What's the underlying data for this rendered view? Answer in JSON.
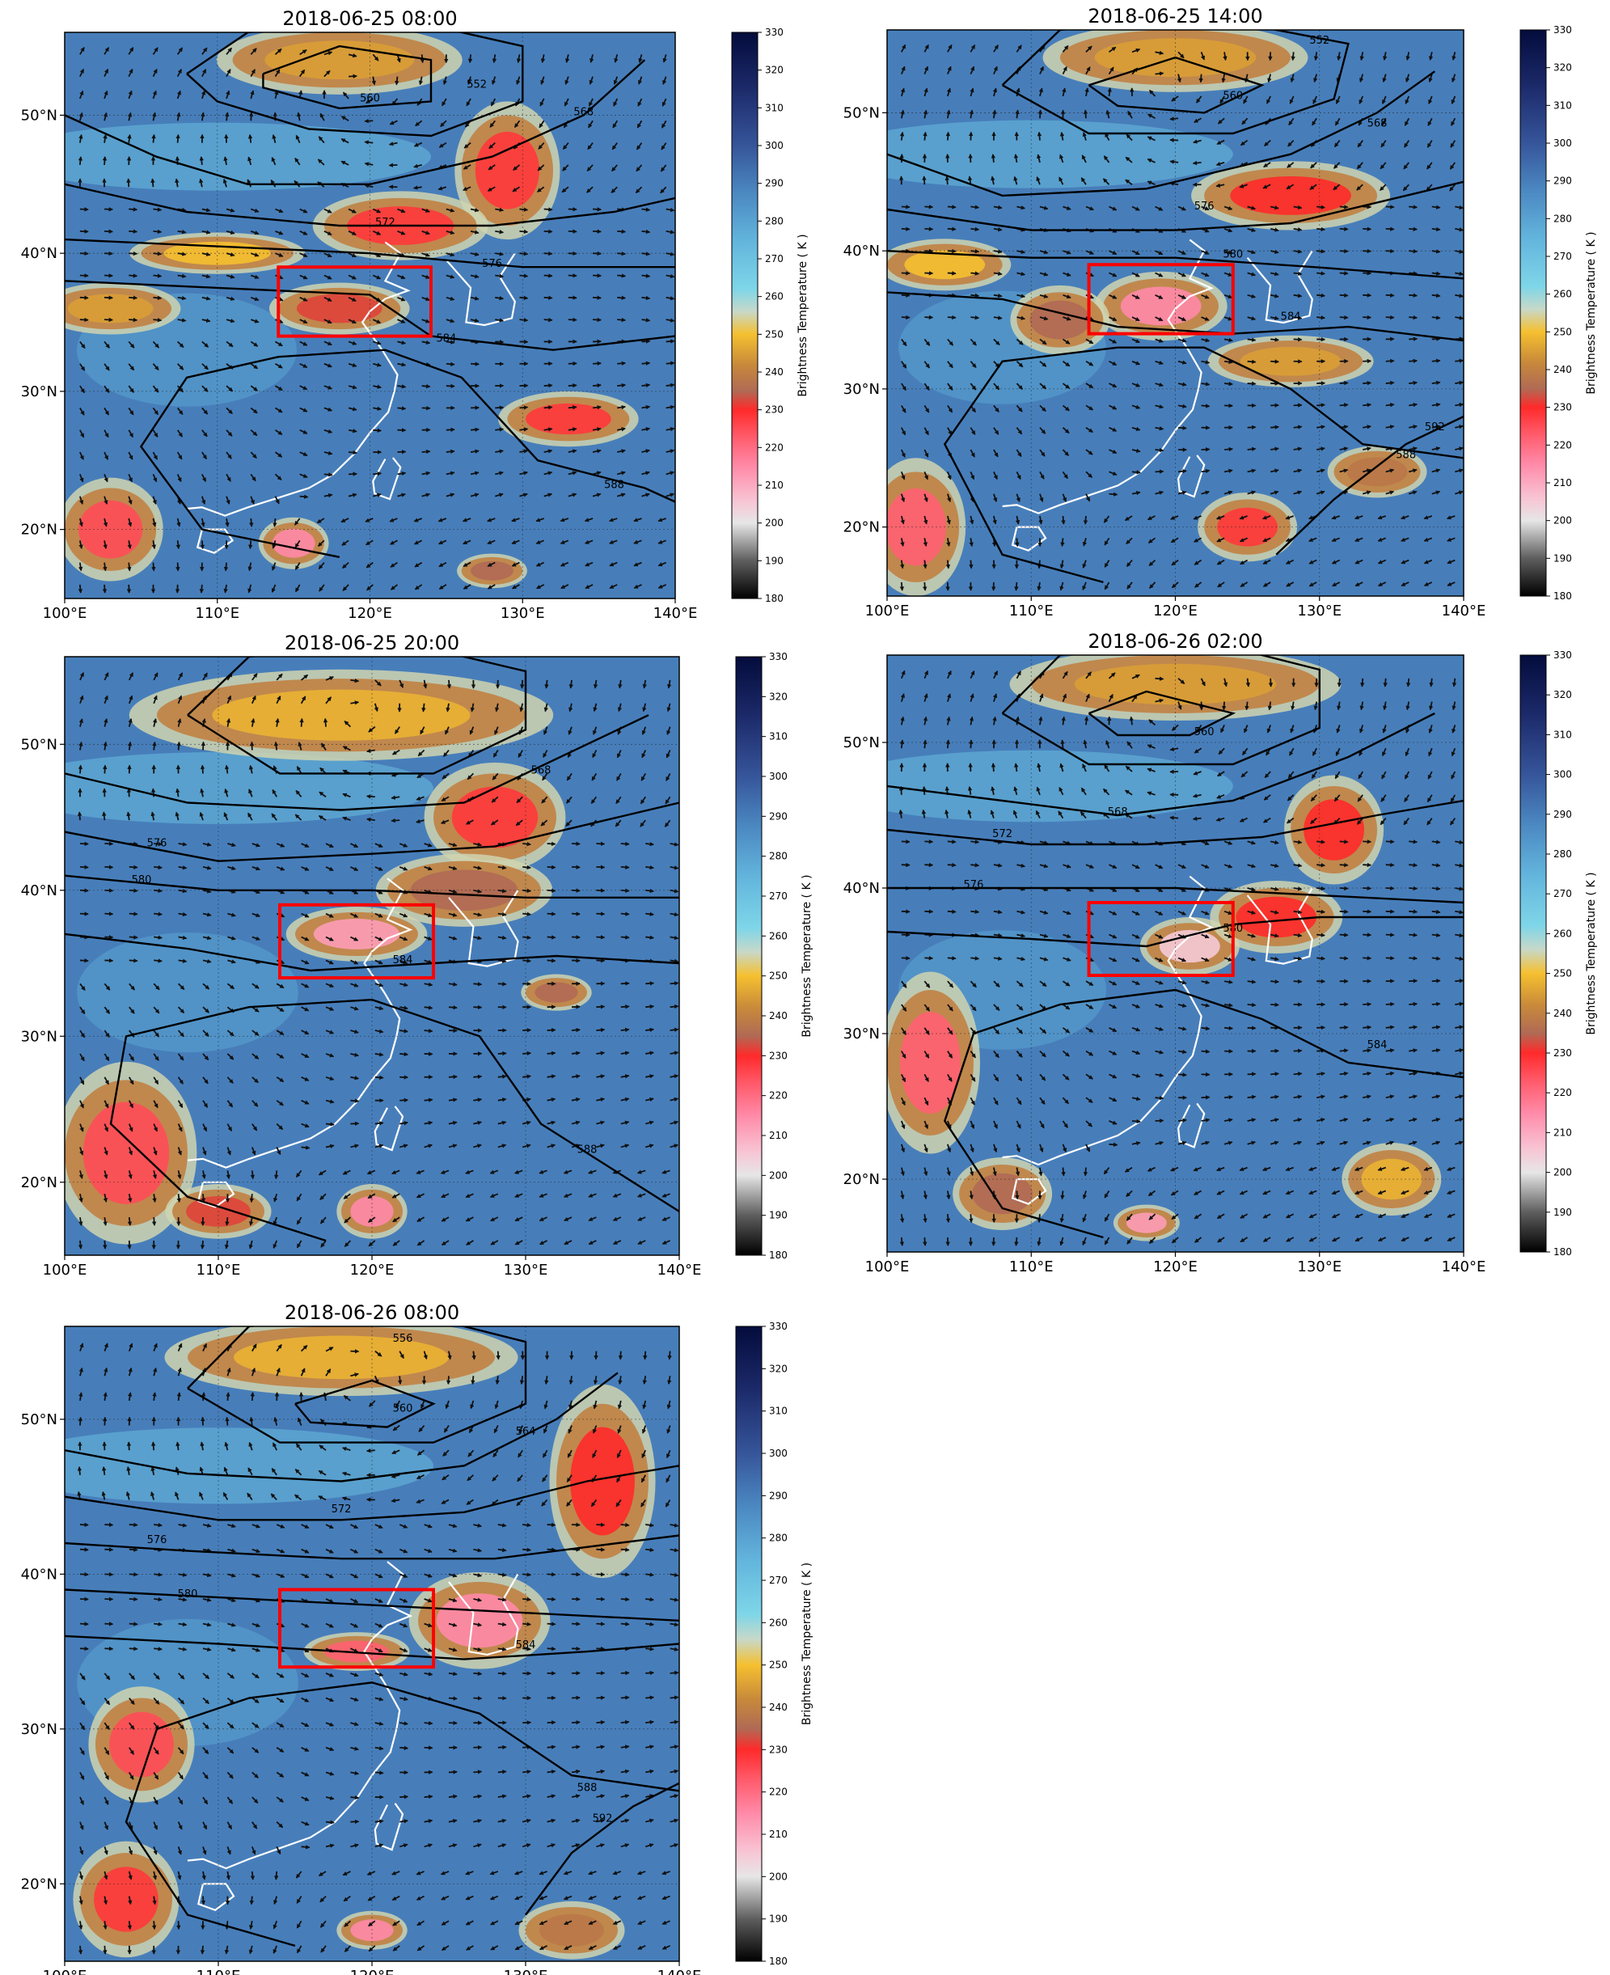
{
  "panels": [
    {
      "title": "2018-06-25 08:00",
      "contour_labels": [
        "552",
        "560",
        "568",
        "572",
        "576",
        "584",
        "588"
      ]
    },
    {
      "title": "2018-06-25 14:00",
      "contour_labels": [
        "552",
        "560",
        "568",
        "576",
        "580",
        "584",
        "588",
        "592"
      ]
    },
    {
      "title": "2018-06-25 20:00",
      "contour_labels": [
        "568",
        "576",
        "580",
        "584",
        "588"
      ]
    },
    {
      "title": "2018-06-26 02:00",
      "contour_labels": [
        "560",
        "568",
        "572",
        "576",
        "580",
        "584"
      ]
    },
    {
      "title": "2018-06-26 08:00",
      "contour_labels": [
        "556",
        "560",
        "564",
        "572",
        "576",
        "580",
        "584",
        "588",
        "592"
      ]
    }
  ],
  "axes": {
    "x_ticks": [
      "100°E",
      "110°E",
      "120°E",
      "130°E",
      "140°E"
    ],
    "y_ticks": [
      "20°N",
      "30°N",
      "40°N",
      "50°N"
    ],
    "lon_range": [
      100,
      140
    ],
    "lat_range": [
      15,
      56
    ]
  },
  "colorbar": {
    "label": "Brightness Temperature ( K )",
    "ticks": [
      "180",
      "190",
      "200",
      "210",
      "220",
      "230",
      "240",
      "250",
      "260",
      "270",
      "280",
      "290",
      "300",
      "310",
      "320",
      "330"
    ],
    "range": [
      180,
      330
    ],
    "stops": [
      {
        "v": 180,
        "c": "#000000"
      },
      {
        "v": 190,
        "c": "#5e5e5e"
      },
      {
        "v": 200,
        "c": "#e6e6e6"
      },
      {
        "v": 206,
        "c": "#f8c4d4"
      },
      {
        "v": 215,
        "c": "#ff8aa8"
      },
      {
        "v": 223,
        "c": "#ff5a6a"
      },
      {
        "v": 230,
        "c": "#ff2a2a"
      },
      {
        "v": 235,
        "c": "#b06a55"
      },
      {
        "v": 242,
        "c": "#c88a3a"
      },
      {
        "v": 250,
        "c": "#f5c030"
      },
      {
        "v": 256,
        "c": "#c8d8c8"
      },
      {
        "v": 262,
        "c": "#7ed6e8"
      },
      {
        "v": 275,
        "c": "#62b4dc"
      },
      {
        "v": 288,
        "c": "#4a86c0"
      },
      {
        "v": 300,
        "c": "#36559a"
      },
      {
        "v": 315,
        "c": "#1c2a6a"
      },
      {
        "v": 330,
        "c": "#040c3c"
      }
    ]
  },
  "highlight_box": {
    "lon": [
      114,
      124
    ],
    "lat": [
      34,
      39
    ],
    "color": "#ff0000"
  },
  "colors": {
    "contour": "#000000",
    "coastline": "#ffffff",
    "wind_vector": "#111111"
  }
}
